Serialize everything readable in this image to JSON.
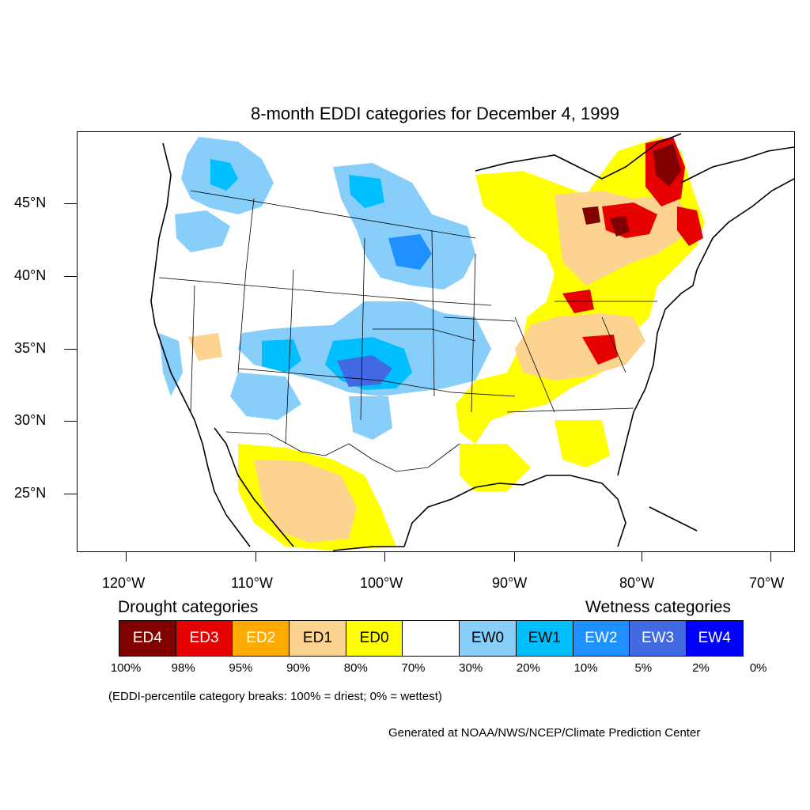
{
  "title": "8-month EDDI categories for December 4, 1999",
  "y_axis": {
    "ticks": [
      "45°N",
      "40°N",
      "35°N",
      "30°N",
      "25°N"
    ]
  },
  "x_axis": {
    "ticks": [
      "120°W",
      "110°W",
      "100°W",
      "90°W",
      "80°W",
      "70°W"
    ]
  },
  "legend": {
    "drought_heading": "Drought categories",
    "wetness_heading": "Wetness categories",
    "categories": [
      {
        "label": "ED4",
        "color": "#800000",
        "text_color": "#ffffff"
      },
      {
        "label": "ED3",
        "color": "#e60000",
        "text_color": "#ffffff"
      },
      {
        "label": "ED2",
        "color": "#ffaa00",
        "text_color": "#ffffff"
      },
      {
        "label": "ED1",
        "color": "#fcd38f",
        "text_color": "#000000"
      },
      {
        "label": "ED0",
        "color": "#ffff00",
        "text_color": "#000000"
      },
      {
        "label": "",
        "color": "#ffffff",
        "text_color": "#000000"
      },
      {
        "label": "EW0",
        "color": "#87cefa",
        "text_color": "#000000"
      },
      {
        "label": "EW1",
        "color": "#00bfff",
        "text_color": "#000000"
      },
      {
        "label": "EW2",
        "color": "#1e90ff",
        "text_color": "#ffffff"
      },
      {
        "label": "EW3",
        "color": "#4169e1",
        "text_color": "#ffffff"
      },
      {
        "label": "EW4",
        "color": "#0000ff",
        "text_color": "#ffffff"
      }
    ],
    "percentiles": [
      "100%",
      "98%",
      "95%",
      "90%",
      "80%",
      "70%",
      "30%",
      "20%",
      "10%",
      "5%",
      "2%",
      "0%"
    ]
  },
  "note": "(EDDI-percentile category breaks: 100% = driest; 0% = wettest)",
  "credit": "Generated at NOAA/NWS/NCEP/Climate Prediction Center"
}
